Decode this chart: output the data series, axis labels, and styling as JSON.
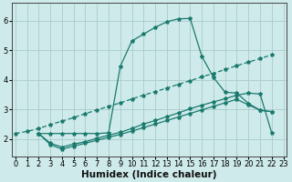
{
  "bg_color": "#ceeaea",
  "grid_color": "#aacccc",
  "line_color": "#1a7a6e",
  "xlabel": "Humidex (Indice chaleur)",
  "xlabel_fontsize": 7.5,
  "tick_fontsize": 6,
  "xlim": [
    -0.3,
    23.3
  ],
  "ylim": [
    1.4,
    6.6
  ],
  "yticks": [
    2,
    3,
    4,
    5,
    6
  ],
  "xticks": [
    0,
    1,
    2,
    3,
    4,
    5,
    6,
    7,
    8,
    9,
    10,
    11,
    12,
    13,
    14,
    15,
    16,
    17,
    18,
    19,
    20,
    21,
    22,
    23
  ],
  "line_diag_x": [
    0,
    1,
    2,
    3,
    4,
    5,
    6,
    7,
    8,
    9,
    10,
    11,
    12,
    13,
    14,
    15,
    16,
    17,
    18,
    19,
    20,
    21,
    22
  ],
  "line_diag_y": [
    2.18,
    2.25,
    2.35,
    2.48,
    2.6,
    2.72,
    2.85,
    2.98,
    3.1,
    3.22,
    3.35,
    3.48,
    3.6,
    3.72,
    3.85,
    3.97,
    4.1,
    4.22,
    4.35,
    4.48,
    4.6,
    4.72,
    4.85
  ],
  "line_peak_x": [
    2,
    3,
    4,
    5,
    6,
    7,
    8,
    9,
    10,
    11,
    12,
    13,
    14,
    15,
    16,
    17,
    18,
    19,
    20,
    21,
    22
  ],
  "line_peak_y": [
    2.18,
    2.18,
    2.18,
    2.18,
    2.18,
    2.18,
    2.2,
    4.45,
    5.32,
    5.55,
    5.78,
    5.97,
    6.07,
    6.08,
    4.8,
    4.08,
    3.58,
    3.55,
    3.2,
    2.97,
    2.92
  ],
  "line_rise_x": [
    2,
    3,
    4,
    5,
    6,
    7,
    8,
    9,
    10,
    11,
    12,
    13,
    14,
    15,
    16,
    17,
    18,
    19,
    20,
    21,
    22
  ],
  "line_rise_y": [
    2.18,
    1.85,
    1.72,
    1.82,
    1.9,
    2.02,
    2.12,
    2.22,
    2.35,
    2.5,
    2.62,
    2.75,
    2.88,
    3.02,
    3.14,
    3.25,
    3.36,
    3.48,
    3.55,
    3.52,
    2.2
  ],
  "line_flat_x": [
    2,
    3,
    4,
    5,
    6,
    7,
    8,
    9,
    10,
    11,
    12,
    13,
    14,
    15,
    16,
    17,
    18,
    19,
    20,
    21,
    22
  ],
  "line_flat_y": [
    2.18,
    1.8,
    1.65,
    1.75,
    1.85,
    1.95,
    2.05,
    2.15,
    2.26,
    2.38,
    2.5,
    2.62,
    2.74,
    2.86,
    2.98,
    3.1,
    3.22,
    3.34,
    3.15,
    2.97,
    2.92
  ]
}
